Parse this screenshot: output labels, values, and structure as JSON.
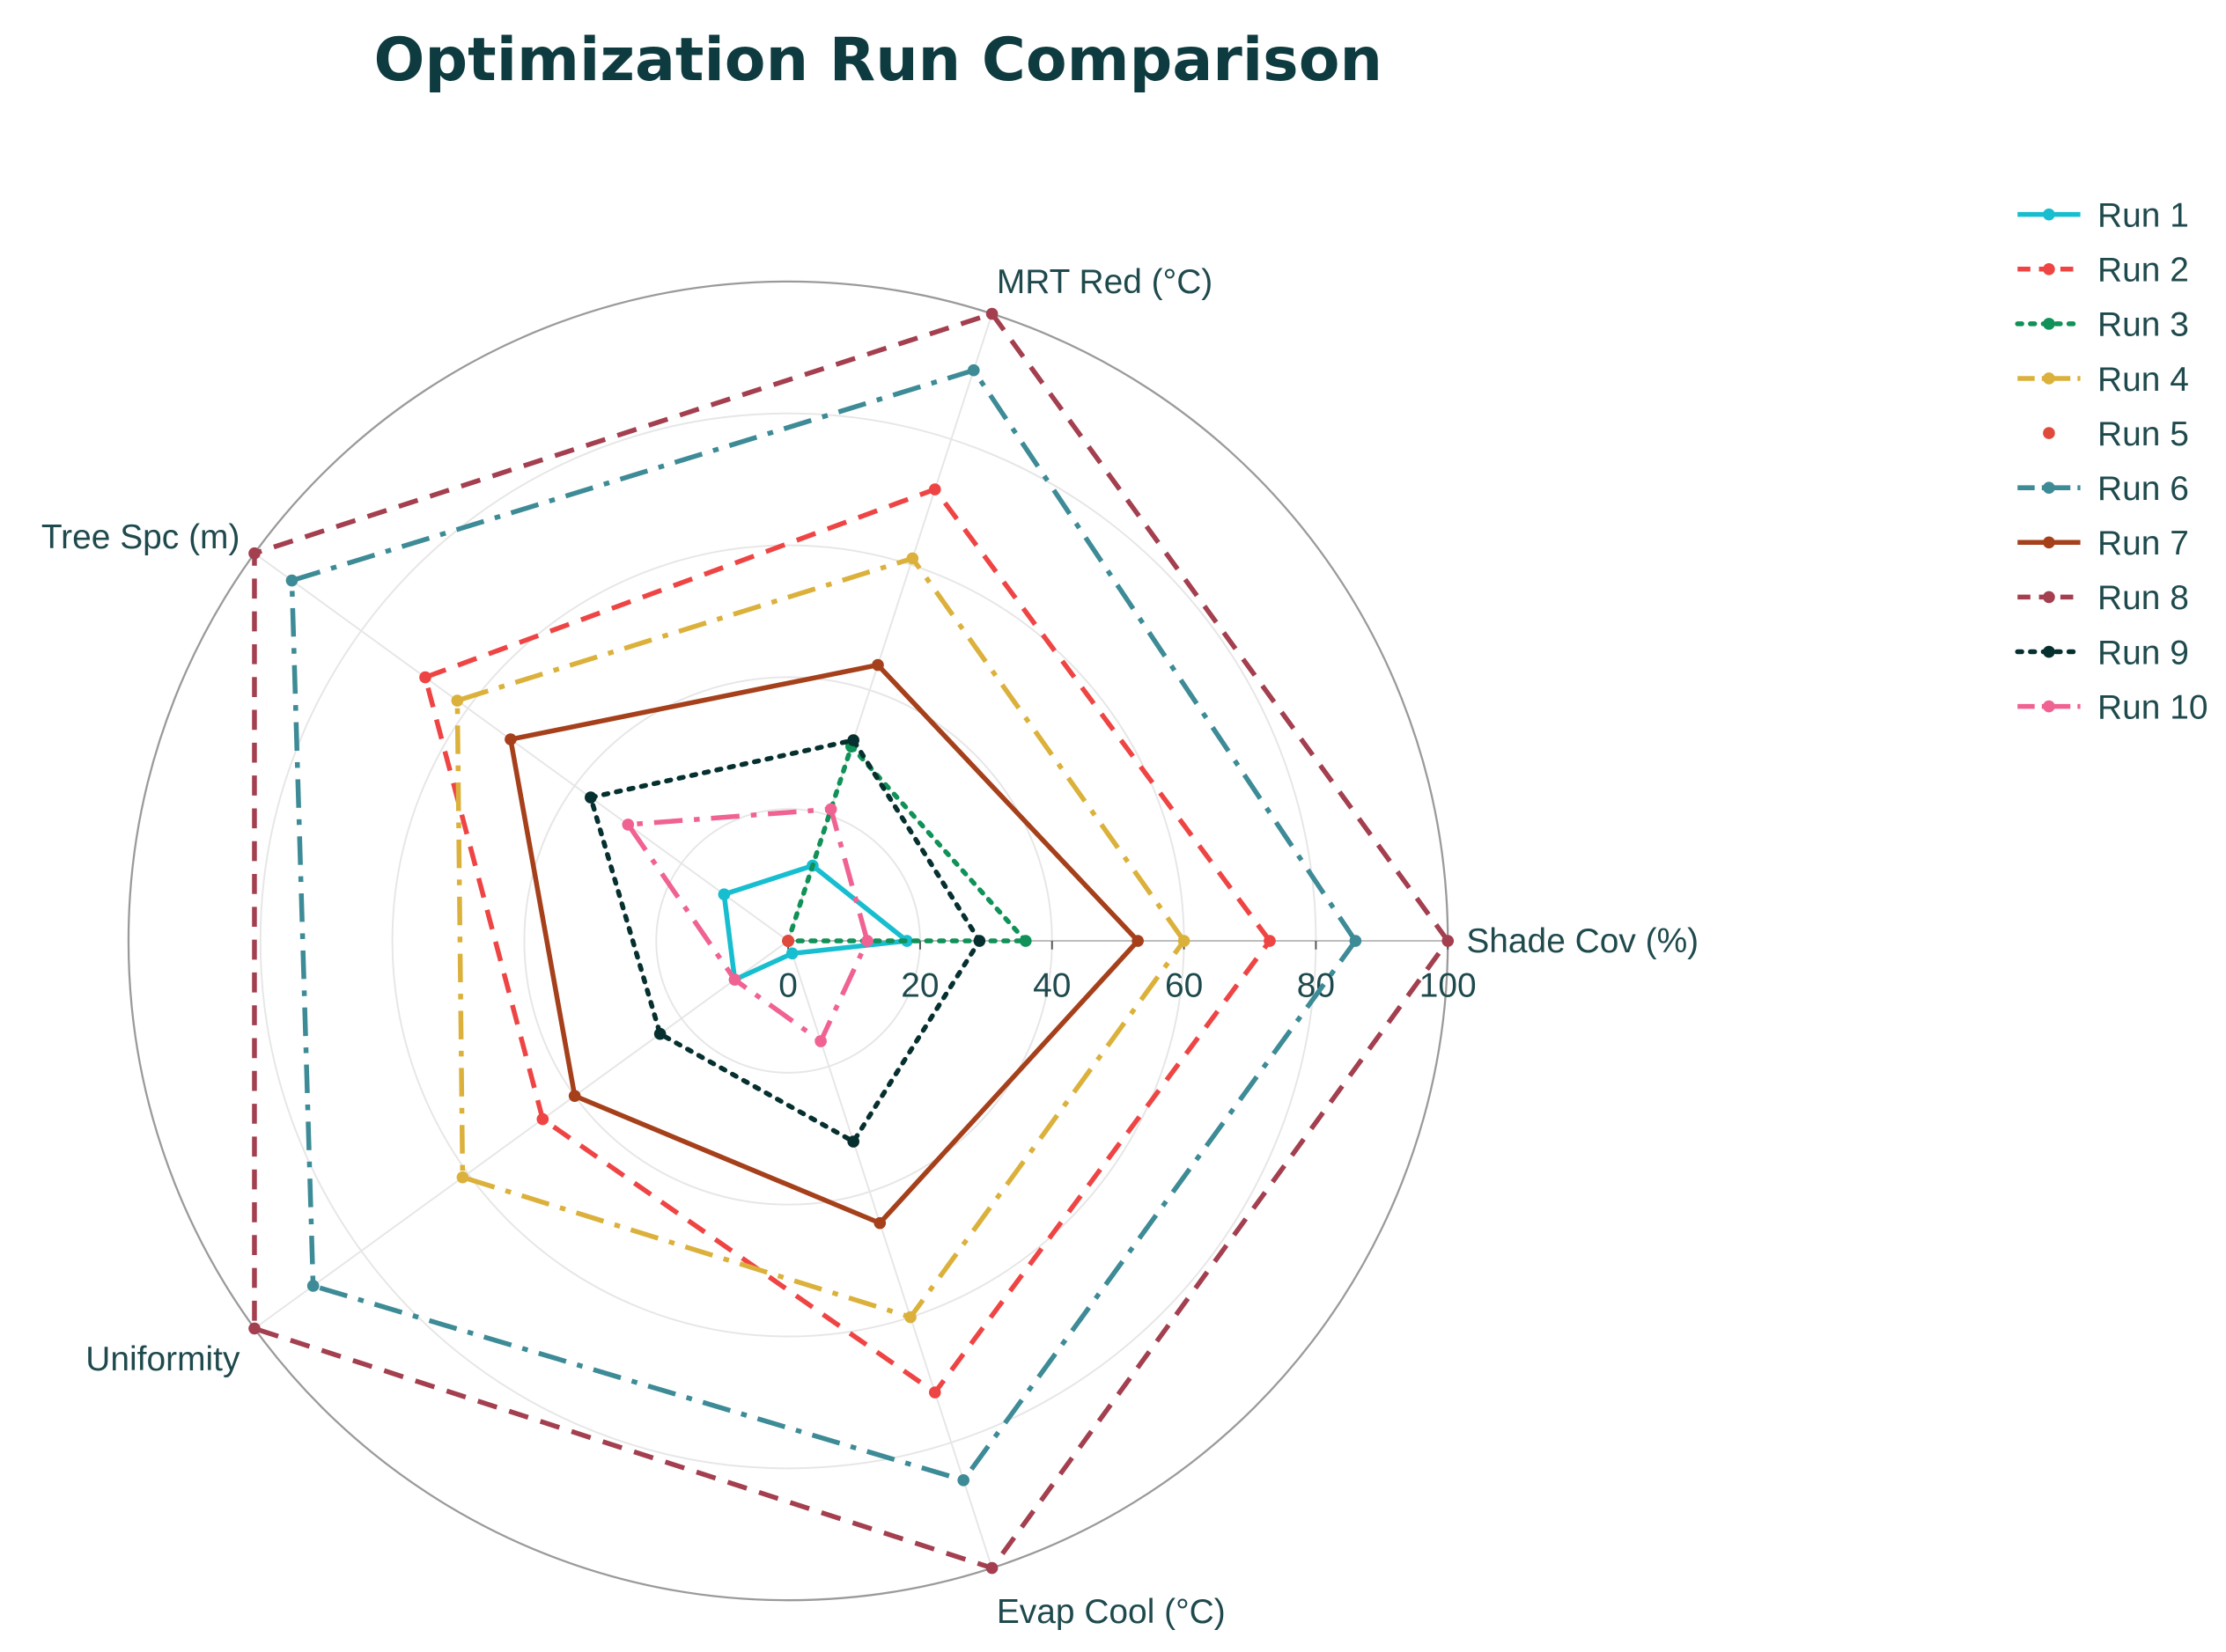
{
  "chart_data": {
    "type": "radar",
    "title": "Optimization Run Comparison",
    "axes": [
      "Shade Cov (%)",
      "MRT Red (°C)",
      "Tree Spc (m)",
      "Uniformity",
      "Evap Cool (°C)"
    ],
    "radial_range": [
      0,
      100
    ],
    "radial_ticks": [
      0,
      20,
      40,
      60,
      80,
      100
    ],
    "grid": true,
    "legend_position": "top-right",
    "series": [
      {
        "name": "Run 1",
        "color": "#17becf",
        "dash": "solid",
        "values": [
          18,
          12,
          12,
          10,
          2
        ]
      },
      {
        "name": "Run 2",
        "color": "#ef4444",
        "dash": "dash",
        "values": [
          73,
          72,
          68,
          46,
          72
        ]
      },
      {
        "name": "Run 3",
        "color": "#0f9157",
        "dash": "dot",
        "values": [
          36,
          31,
          0,
          0,
          0
        ]
      },
      {
        "name": "Run 4",
        "color": "#dbb13b",
        "dash": "dashdot",
        "values": [
          60,
          61,
          62,
          61,
          60
        ]
      },
      {
        "name": "Run 5",
        "color": "#e04a3c",
        "dash": "none",
        "values": [
          0,
          0,
          0,
          0,
          0
        ]
      },
      {
        "name": "Run 6",
        "color": "#3d8b96",
        "dash": "dashdot",
        "values": [
          86,
          91,
          93,
          89,
          86
        ]
      },
      {
        "name": "Run 7",
        "color": "#a5401b",
        "dash": "solid",
        "values": [
          53,
          44,
          52,
          40,
          45
        ]
      },
      {
        "name": "Run 8",
        "color": "#a33f4e",
        "dash": "dash",
        "values": [
          100,
          100,
          100,
          100,
          100
        ]
      },
      {
        "name": "Run 9",
        "color": "#06302f",
        "dash": "dot",
        "values": [
          29,
          32,
          37,
          24,
          32
        ]
      },
      {
        "name": "Run 10",
        "color": "#f06292",
        "dash": "dashdot",
        "values": [
          12,
          21,
          30,
          10,
          16
        ]
      }
    ]
  }
}
